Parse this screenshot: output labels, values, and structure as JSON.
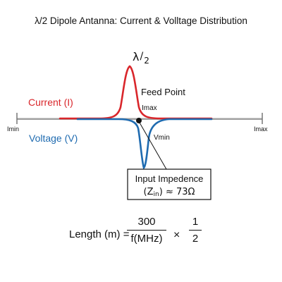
{
  "title": "λ/2 Dipole Antanna: Current & Volltage Distribution",
  "lambda_label": {
    "lambda": "λ",
    "slash": "/",
    "two": "2"
  },
  "feed_point_label": "Feed Point",
  "current_label": "Current (I)",
  "voltage_label": "Voltage (V)",
  "i_max_center": "Imax",
  "i_max_right": "Imax",
  "i_min_left": "Imin",
  "v_min": "Vmin",
  "impedance": {
    "line1": "Input Impedence",
    "line2_pre": "(Z",
    "line2_sub": "in",
    "line2_post": ") ≈ 73Ω"
  },
  "formula": {
    "lhs": "Length (m) =",
    "frac1_num": "300",
    "frac1_den": "f(MHz)",
    "times": "×",
    "frac2_num": "1",
    "frac2_den": "2"
  },
  "colors": {
    "current": "#d9262b",
    "voltage": "#1f6bb0",
    "antenna": "#9a9a9a",
    "text": "#111111"
  }
}
